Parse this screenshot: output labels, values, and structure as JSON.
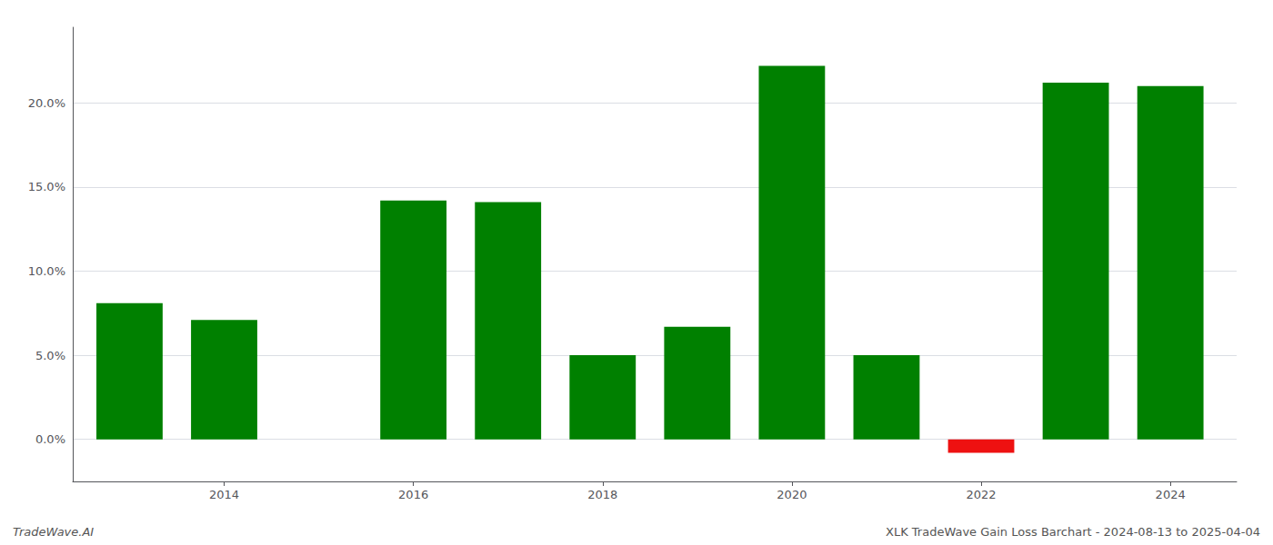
{
  "chart_data": {
    "type": "bar",
    "x": [
      2013,
      2014,
      2016,
      2017,
      2018,
      2019,
      2020,
      2021,
      2022,
      2023,
      2024
    ],
    "values": [
      0.081,
      0.071,
      0.142,
      0.141,
      0.05,
      0.067,
      0.222,
      0.05,
      -0.008,
      0.212,
      0.21
    ],
    "colors": [
      "#008000",
      "#008000",
      "#008000",
      "#008000",
      "#008000",
      "#008000",
      "#008000",
      "#008000",
      "#ee1111",
      "#008000",
      "#008000"
    ],
    "xlim": [
      2012.4,
      2024.7
    ],
    "xticks": [
      2014,
      2016,
      2018,
      2020,
      2022,
      2024
    ],
    "ylim": [
      -0.025,
      0.245
    ],
    "yticks": [
      {
        "value": 0.0,
        "label": "0.0%"
      },
      {
        "value": 0.05,
        "label": "5.0%"
      },
      {
        "value": 0.1,
        "label": "10.0%"
      },
      {
        "value": 0.15,
        "label": "15.0%"
      },
      {
        "value": 0.2,
        "label": "20.0%"
      }
    ],
    "grid": true,
    "annotations": [
      "TradeWave.AI",
      "XLK TradeWave Gain Loss Barchart - 2024-08-13 to 2025-04-04"
    ]
  }
}
